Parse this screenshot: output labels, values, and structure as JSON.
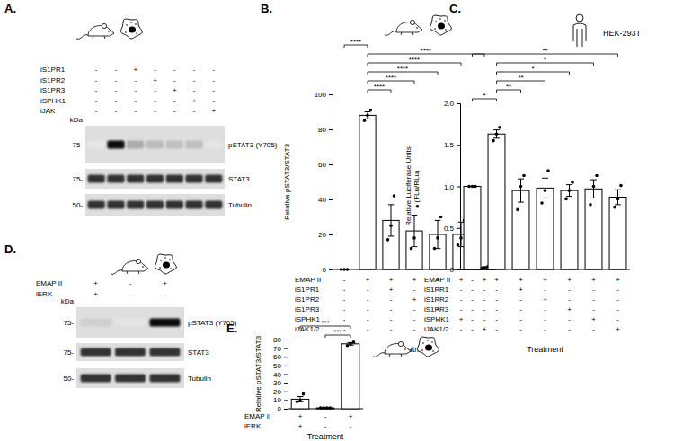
{
  "chart_data": [
    {
      "panel": "B.",
      "type": "bar",
      "y_label": "Relative pSTAT3/STAT3",
      "x_label": "Treatment",
      "ylim": [
        0,
        100
      ],
      "yticks": [
        0,
        20,
        40,
        60,
        80,
        100
      ],
      "tick_labels": "y",
      "color": "#ffffff",
      "values": [
        0,
        88,
        28,
        22,
        20,
        20,
        1
      ],
      "errors": [
        0,
        2,
        9,
        9,
        8,
        7,
        0.5
      ],
      "points": [
        [
          0,
          0,
          0
        ],
        [
          85,
          88,
          91
        ],
        [
          17,
          25,
          42
        ],
        [
          12,
          18,
          36
        ],
        [
          12,
          18,
          30
        ],
        [
          14,
          18,
          28
        ],
        [
          0.5,
          1,
          1.5
        ]
      ],
      "treatments": [
        {
          "name": "EMAP II",
          "values": [
            "-",
            "+",
            "+",
            "+",
            "+",
            "+",
            "+"
          ]
        },
        {
          "name": "iS1PR1",
          "values": [
            "-",
            "-",
            "+",
            "-",
            "-",
            "-",
            "-"
          ]
        },
        {
          "name": "iS1PR2",
          "values": [
            "-",
            "-",
            "-",
            "+",
            "-",
            "-",
            "-"
          ]
        },
        {
          "name": "iS1PR3",
          "values": [
            "-",
            "-",
            "-",
            "-",
            "+",
            "-",
            "-"
          ]
        },
        {
          "name": "iSPHK1",
          "values": [
            "-",
            "-",
            "-",
            "-",
            "-",
            "+",
            "-"
          ]
        },
        {
          "name": "iJAK1/2",
          "values": [
            "-",
            "-",
            "-",
            "-",
            "-",
            "-",
            "+"
          ]
        }
      ],
      "significance": [
        {
          "from": 1,
          "to": 2,
          "label": "****"
        },
        {
          "from": 1,
          "to": 3,
          "label": "****"
        },
        {
          "from": 1,
          "to": 4,
          "label": "****"
        },
        {
          "from": 1,
          "to": 5,
          "label": "****"
        },
        {
          "from": 1,
          "to": 6,
          "label": "****"
        },
        {
          "from": 0,
          "to": 1,
          "label": "****"
        }
      ]
    },
    {
      "panel": "C.",
      "type": "bar",
      "cell_line": "HEK-293T",
      "y_label": [
        "Relative Luciferase Units",
        "(FLu/RLu)"
      ],
      "x_label": "Treatment",
      "ylim": [
        0,
        2
      ],
      "yticks": [
        0,
        0.5,
        {
          "value": 1,
          "label": "1.0"
        },
        1.5,
        {
          "value": 2,
          "label": "2.0"
        }
      ],
      "tick_labels": "y",
      "color": "#ffffff",
      "values": [
        1.0,
        1.63,
        0.95,
        0.98,
        0.95,
        0.97,
        0.87
      ],
      "errors": [
        0,
        0.05,
        0.14,
        0.12,
        0.07,
        0.11,
        0.09
      ],
      "points": [
        [
          1,
          1,
          1
        ],
        [
          1.55,
          1.63,
          1.71
        ],
        [
          0.72,
          1.0,
          1.13
        ],
        [
          0.8,
          0.95,
          1.19
        ],
        [
          0.85,
          0.95,
          1.05
        ],
        [
          0.78,
          1.0,
          1.13
        ],
        [
          0.75,
          0.85,
          1.01
        ]
      ],
      "treatments": [
        {
          "name": "EMAP II",
          "values": [
            "-",
            "+",
            "+",
            "+",
            "+",
            "+",
            "+"
          ]
        },
        {
          "name": "iS1PR1",
          "values": [
            "-",
            "-",
            "+",
            "-",
            "-",
            "-",
            "-"
          ]
        },
        {
          "name": "iS1PR2",
          "values": [
            "-",
            "-",
            "-",
            "+",
            "-",
            "-",
            "-"
          ]
        },
        {
          "name": "iS1PR3",
          "values": [
            "-",
            "-",
            "-",
            "-",
            "+",
            "-",
            "-"
          ]
        },
        {
          "name": "iSPHK1",
          "values": [
            "-",
            "-",
            "-",
            "-",
            "-",
            "+",
            "-"
          ]
        },
        {
          "name": "iJAK1/2",
          "values": [
            "-",
            "-",
            "-",
            "-",
            "-",
            "-",
            "+"
          ]
        }
      ],
      "significance": [
        {
          "from": 0,
          "to": 1,
          "label": "*"
        },
        {
          "from": 1,
          "to": 2,
          "label": "**"
        },
        {
          "from": 1,
          "to": 3,
          "label": "**"
        },
        {
          "from": 1,
          "to": 4,
          "label": "*"
        },
        {
          "from": 1,
          "to": 5,
          "label": "*"
        },
        {
          "from": 0,
          "to": 6,
          "label": "**"
        }
      ]
    },
    {
      "panel": "E.",
      "type": "bar",
      "y_label": "Relative pSTAT3/STAT3",
      "x_label": "Treatment",
      "ylim": [
        0,
        80
      ],
      "yticks": [
        0,
        10,
        20,
        30,
        40,
        50,
        60,
        70,
        80
      ],
      "tick_labels": "y",
      "color": "#ffffff",
      "values": [
        11,
        1,
        75
      ],
      "errors": [
        3,
        0.2,
        1.5
      ],
      "points": [
        [
          8,
          9,
          17
        ],
        [
          1,
          1,
          1,
          1
        ],
        [
          73,
          75,
          77
        ]
      ],
      "treatments": [
        {
          "name": "EMAP II",
          "values": [
            "+",
            "-",
            "+"
          ]
        },
        {
          "name": "iERK",
          "values": [
            "+",
            "-",
            "-"
          ]
        }
      ],
      "significance": [
        {
          "from": 1,
          "to": 2,
          "label": "***"
        },
        {
          "from": 0,
          "to": 2,
          "label": "***"
        }
      ]
    }
  ],
  "blots": [
    {
      "panel": "A.",
      "kda_label": "kDa",
      "markers": [
        "75-",
        "75-",
        "50-"
      ],
      "bands": [
        "pSTAT3 (Y705)",
        "STAT3",
        "Tubulin"
      ],
      "treatments": [
        {
          "name": "iS1PR1",
          "values": [
            "-",
            "-",
            "+",
            "-",
            "-",
            "-",
            "-"
          ]
        },
        {
          "name": "iS1PR2",
          "values": [
            "-",
            "-",
            "-",
            "+",
            "-",
            "-",
            "-"
          ]
        },
        {
          "name": "iS1PR3",
          "values": [
            "-",
            "-",
            "-",
            "-",
            "+",
            "-",
            "-"
          ]
        },
        {
          "name": "iSPHK1",
          "values": [
            "-",
            "-",
            "-",
            "-",
            "-",
            "+",
            "-"
          ]
        },
        {
          "name": "iJAK",
          "values": [
            "-",
            "-",
            "-",
            "-",
            "-",
            "-",
            "+"
          ]
        }
      ]
    },
    {
      "panel": "D.",
      "kda_label": "kDa",
      "markers": [
        "75-",
        "75-",
        "50-"
      ],
      "bands": [
        "pSTAT3 (Y705)",
        "STAT3",
        "Tubulin"
      ],
      "treatments": [
        {
          "name": "EMAP II",
          "values": [
            "+",
            "-",
            "+"
          ]
        },
        {
          "name": "iERK",
          "values": [
            "+",
            "-",
            "-"
          ]
        }
      ]
    }
  ]
}
